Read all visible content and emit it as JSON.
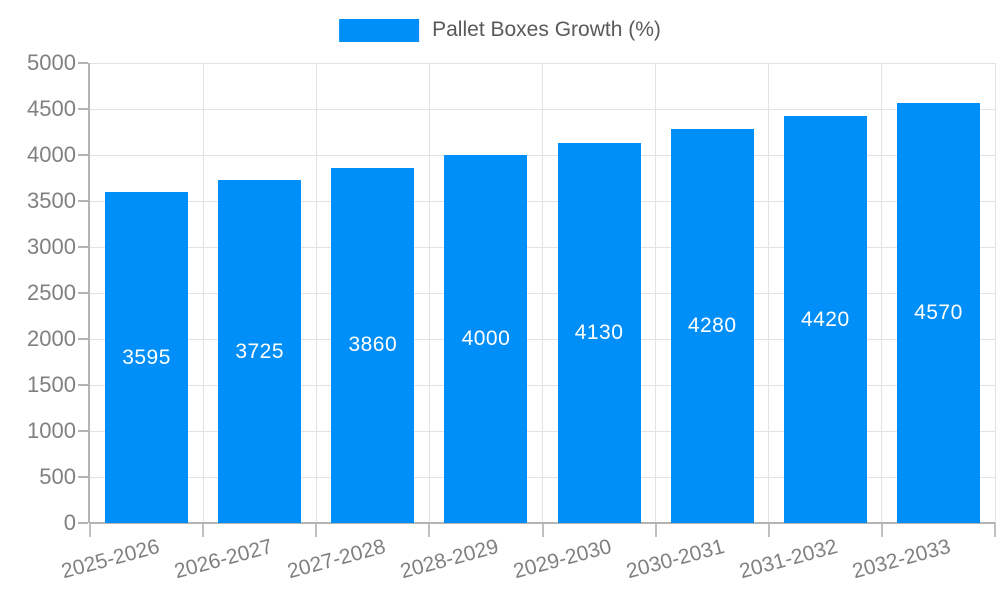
{
  "chart_data": {
    "type": "bar",
    "title": "",
    "legend": "Pallet Boxes Growth (%)",
    "legend_position": "top-center",
    "categories": [
      "2025-2026",
      "2026-2027",
      "2027-2028",
      "2028-2029",
      "2029-2030",
      "2030-2031",
      "2031-2032",
      "2032-2033"
    ],
    "values": [
      3595,
      3725,
      3860,
      4000,
      4130,
      4280,
      4420,
      4570
    ],
    "bar_value_labels": [
      "3595",
      "3725",
      "3860",
      "4000",
      "4130",
      "4280",
      "4420",
      "4570"
    ],
    "xlabel": "",
    "ylabel": "",
    "ylim": [
      0,
      5000
    ],
    "yticks": [
      0,
      500,
      1000,
      1500,
      2000,
      2500,
      3000,
      3500,
      4000,
      4500,
      5000
    ],
    "grid": true,
    "colors": {
      "bar": "#008ff8",
      "bar_label": "#ffffff",
      "grid": "#e3e3e3",
      "axis": "#b4b4b4",
      "tick": "#c0c0c0",
      "tick_label": "#808080",
      "legend_text": "#595959",
      "background": "#ffffff"
    }
  }
}
